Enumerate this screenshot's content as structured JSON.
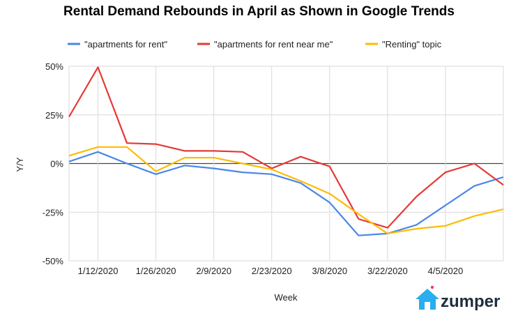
{
  "title": "Rental Demand Rebounds in April as Shown in Google Trends",
  "brand": {
    "logo_text": "zumper",
    "house_color": "#29aef0",
    "heart_color": "#e83a72"
  },
  "chart_data": {
    "type": "line",
    "title": "Rental Demand Rebounds in April as Shown in Google Trends",
    "xlabel": "Week",
    "ylabel": "Y/Y",
    "ylim": [
      -50,
      50
    ],
    "yticks": [
      "50%",
      "25%",
      "0%",
      "-25%",
      "-50%"
    ],
    "ytick_values": [
      50,
      25,
      0,
      -25,
      -50
    ],
    "xtick_labels": [
      "1/12/2020",
      "1/26/2020",
      "2/9/2020",
      "2/23/2020",
      "3/8/2020",
      "3/22/2020",
      "4/5/2020"
    ],
    "xtick_positions": [
      1,
      3,
      5,
      7,
      9,
      11,
      13
    ],
    "x_count": 16,
    "legend_position": "top",
    "grid": true,
    "series": [
      {
        "name": "\"apartments for rent\"",
        "color": "#4a86e8",
        "values": [
          1,
          6,
          0,
          -5.5,
          -1,
          -2.5,
          -4.5,
          -5.5,
          -10,
          -20,
          -37,
          -36,
          -31.5,
          -21.5,
          -11.5,
          -7
        ]
      },
      {
        "name": "\"apartments for rent near me\"",
        "color": "#e53935",
        "values": [
          24,
          49.5,
          10.5,
          10,
          6.5,
          6.5,
          6,
          -2.5,
          3.5,
          -1.5,
          -28.5,
          -33,
          -17,
          -4.5,
          0,
          -11
        ]
      },
      {
        "name": "\"Renting\" topic",
        "color": "#fbbc04",
        "values": [
          4,
          8.5,
          8.5,
          -4,
          3,
          3,
          0,
          -3,
          -9,
          -15.5,
          -26,
          -36,
          -33.5,
          -32,
          -27,
          -23.5
        ]
      }
    ]
  }
}
